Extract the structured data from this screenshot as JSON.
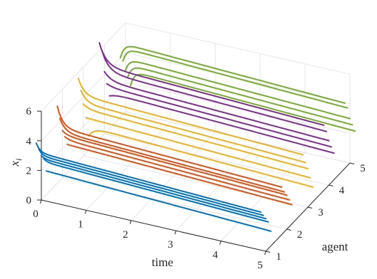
{
  "chart_data": {
    "type": "line",
    "view": "3d",
    "title": "",
    "xlabel": "time",
    "ylabel": "agent",
    "zlabel": "x",
    "zlabel_subscript": "i",
    "xlim": [
      0,
      5
    ],
    "ylim": [
      1,
      5
    ],
    "zlim": [
      0,
      6
    ],
    "xticks": [
      "0",
      "1",
      "2",
      "3",
      "4",
      "5"
    ],
    "yticks": [
      "1",
      "2",
      "3",
      "4",
      "5"
    ],
    "zticks": [
      "0",
      "2",
      "4",
      "6"
    ],
    "grid": true,
    "series": [
      {
        "agent": 1,
        "color": "#0072BD",
        "start": [
          4.2,
          3.6,
          3.0,
          2.6,
          1.6
        ],
        "end": [
          3.6,
          3.2,
          2.8,
          2.4,
          1.6
        ],
        "tau": 0.08
      },
      {
        "agent": 2,
        "color": "#D95319",
        "start": [
          5.2,
          4.2,
          3.2,
          2.6,
          1.9
        ],
        "end": [
          3.8,
          3.3,
          2.9,
          2.4,
          1.9
        ],
        "tau": 0.12
      },
      {
        "agent": 3,
        "color": "#EDB120",
        "start": [
          5.6,
          4.6,
          3.5,
          2.4,
          1.0
        ],
        "end": [
          4.5,
          3.8,
          3.2,
          2.4,
          1.6
        ],
        "tau": 0.12
      },
      {
        "agent": 4,
        "color": "#7E2F8E",
        "start": [
          6.5,
          5.8,
          4.2,
          3.2,
          2.2
        ],
        "end": [
          5.0,
          4.4,
          3.6,
          3.0,
          2.4
        ],
        "tau": 0.15
      },
      {
        "agent": 5,
        "color": "#77AC30",
        "start": [
          4.0,
          3.6,
          2.8,
          2.2,
          1.4
        ],
        "end": [
          5.0,
          4.5,
          3.6,
          3.0,
          2.4
        ],
        "tau": 0.08
      }
    ]
  }
}
